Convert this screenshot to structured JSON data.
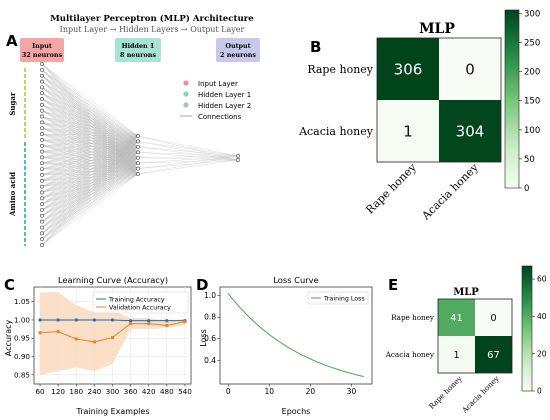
{
  "panels": {
    "a": {
      "letter": "A"
    },
    "b": {
      "letter": "B"
    },
    "c": {
      "letter": "C"
    },
    "d": {
      "letter": "D"
    },
    "e": {
      "letter": "E"
    }
  },
  "colors": {
    "input_box": "#f4a6a6",
    "hidden_box": "#a8e4d3",
    "output_box": "#c7c8ec",
    "sugar_bar": "#9acd32",
    "amino_bar": "#1fa9a4",
    "train_line": "#2e6fa3",
    "val_line": "#e8842d",
    "val_band": "#fbd9bd",
    "train_band": "#c9dceb",
    "loss_line": "#3cb043",
    "cm_dark": "#00441b",
    "cm_light": "#f7fcf5"
  },
  "chart_data": [
    {
      "type": "diagram",
      "id": "mlp_architecture",
      "title": "Multilayer Perceptron (MLP) Architecture",
      "subtitle": "Input Layer → Hidden Layers → Output Layer",
      "layers": [
        {
          "name": "Input",
          "neurons_label": "32 neurons",
          "neurons": 32
        },
        {
          "name": "Hidden 1",
          "neurons_label": "8 neurons",
          "neurons": 8
        },
        {
          "name": "Output",
          "neurons_label": "2 neurons",
          "neurons": 2
        }
      ],
      "legend": [
        "Input Layer",
        "Hidden Layer 1",
        "Hidden Layer 2",
        "Connections"
      ],
      "side_labels": [
        "Sugar",
        "Amino acid"
      ]
    },
    {
      "type": "heatmap",
      "id": "cm_large",
      "title": "MLP",
      "rows": [
        "Rape honey",
        "Acacia honey"
      ],
      "cols": [
        "Rape honey",
        "Acacia honey"
      ],
      "values": [
        [
          306,
          0
        ],
        [
          1,
          304
        ]
      ],
      "colorbar_ticks": [
        0,
        50,
        100,
        150,
        200,
        250,
        300
      ],
      "vmin": 0,
      "vmax": 306
    },
    {
      "type": "line",
      "id": "learning_curve",
      "title": "Learning Curve (Accuracy)",
      "xlabel": "Training Examples",
      "ylabel": "Accuracy",
      "x": [
        60,
        120,
        180,
        240,
        300,
        360,
        420,
        480,
        540
      ],
      "ylim": [
        0.825,
        1.09
      ],
      "yticks": [
        0.85,
        0.9,
        0.95,
        1.0,
        1.05
      ],
      "series": [
        {
          "name": "Training Accuracy",
          "values": [
            1.0,
            1.0,
            1.0,
            1.0,
            1.0,
            0.998,
            0.998,
            0.998,
            0.998
          ]
        },
        {
          "name": "Validation Accuracy",
          "values": [
            0.965,
            0.968,
            0.948,
            0.94,
            0.952,
            0.99,
            0.99,
            0.985,
            0.995
          ]
        }
      ],
      "val_band": {
        "lower": [
          0.85,
          0.86,
          0.87,
          0.86,
          0.88,
          0.975,
          0.975,
          0.978,
          0.985
        ],
        "upper": [
          1.075,
          1.076,
          1.04,
          1.02,
          1.025,
          1.005,
          1.005,
          0.996,
          1.004
        ]
      },
      "train_band": {
        "lower": [
          0.997,
          0.997,
          0.997,
          0.997,
          0.997,
          0.995,
          0.995,
          0.996,
          0.996
        ],
        "upper": [
          1.003,
          1.003,
          1.003,
          1.003,
          1.003,
          1.001,
          1.001,
          1.0,
          1.0
        ]
      },
      "legend_position": "top-right",
      "grid": true
    },
    {
      "type": "line",
      "id": "loss_curve",
      "title": "Loss Curve",
      "xlabel": "Epochs",
      "ylabel": "Loss",
      "xlim": [
        -2,
        35
      ],
      "ylim": [
        0.18,
        1.08
      ],
      "xticks": [
        0,
        10,
        20,
        30
      ],
      "yticks": [
        0.4,
        0.6,
        0.8,
        1.0
      ],
      "series": [
        {
          "name": "Training Loss",
          "x_start": 0,
          "x_end": 33,
          "y_start": 1.02,
          "decay": 0.052,
          "floor": 0.08
        }
      ],
      "legend_position": "top-right"
    },
    {
      "type": "heatmap",
      "id": "cm_small",
      "title": "MLP",
      "rows": [
        "Rape honey",
        "Acacia honey"
      ],
      "cols": [
        "Rape honey",
        "Acacia honey"
      ],
      "values": [
        [
          41,
          0
        ],
        [
          1,
          67
        ]
      ],
      "colorbar_ticks": [
        0,
        20,
        40,
        60
      ],
      "vmin": 0,
      "vmax": 67
    }
  ]
}
